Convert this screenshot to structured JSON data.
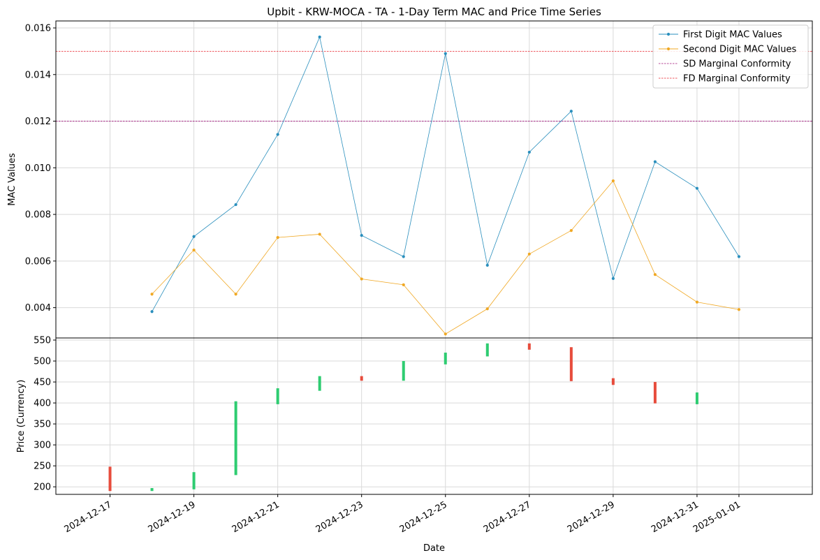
{
  "chart_data": {
    "title": "Upbit - KRW-MOCA - TA - 1-Day Term MAC and Price Time Series",
    "xlabel": "Date",
    "x_ticks": [
      "2024-12-17",
      "2024-12-19",
      "2024-12-21",
      "2024-12-23",
      "2024-12-25",
      "2024-12-27",
      "2024-12-29",
      "2024-12-31",
      "2025-01-01"
    ],
    "grid": true,
    "legend_position": "top-right",
    "panels": [
      {
        "type": "line",
        "ylabel": "MAC Values",
        "ylim": [
          0.0027,
          0.0163
        ],
        "y_ticks": [
          "0.004",
          "0.006",
          "0.008",
          "0.010",
          "0.012",
          "0.014",
          "0.016"
        ],
        "dates": [
          "2024-12-18",
          "2024-12-19",
          "2024-12-20",
          "2024-12-21",
          "2024-12-22",
          "2024-12-23",
          "2024-12-24",
          "2024-12-25",
          "2024-12-26",
          "2024-12-27",
          "2024-12-28",
          "2024-12-29",
          "2024-12-30",
          "2024-12-31",
          "2025-01-01"
        ],
        "series": [
          {
            "name": "First Digit MAC Values",
            "color": "#2a8fbd",
            "values": [
              0.00383,
              0.00705,
              0.00842,
              0.01143,
              0.01561,
              0.0071,
              0.00619,
              0.0149,
              0.00582,
              0.01067,
              0.01243,
              0.00525,
              0.01026,
              0.00912,
              0.00619
            ]
          },
          {
            "name": "Second Digit MAC Values",
            "color": "#f0a824",
            "values": [
              0.00458,
              0.00647,
              0.00458,
              0.00701,
              0.00715,
              0.00523,
              0.00498,
              0.00287,
              0.00395,
              0.0063,
              0.00731,
              0.00944,
              0.00542,
              0.00424,
              0.00392
            ]
          }
        ],
        "reference_lines": [
          {
            "name": "SD Marginal Conformity",
            "value": 0.012,
            "color": "#a0147a",
            "style": "dashed"
          },
          {
            "name": "FD Marginal Conformity",
            "value": 0.015,
            "color": "#e8202a",
            "style": "dashed"
          }
        ]
      },
      {
        "type": "candlestick",
        "ylabel": "Price (Currency)",
        "ylim": [
          182,
          555
        ],
        "y_ticks": [
          "200",
          "250",
          "300",
          "350",
          "400",
          "450",
          "500",
          "550"
        ],
        "up_color": "#2ecc71",
        "down_color": "#e74c3c",
        "candles": [
          {
            "date": "2024-12-17",
            "open": 248,
            "close": 190
          },
          {
            "date": "2024-12-18",
            "open": 190,
            "close": 197
          },
          {
            "date": "2024-12-19",
            "open": 194,
            "close": 235
          },
          {
            "date": "2024-12-20",
            "open": 228,
            "close": 404
          },
          {
            "date": "2024-12-21",
            "open": 397,
            "close": 435
          },
          {
            "date": "2024-12-22",
            "open": 429,
            "close": 464
          },
          {
            "date": "2024-12-23",
            "open": 464,
            "close": 453
          },
          {
            "date": "2024-12-24",
            "open": 453,
            "close": 500
          },
          {
            "date": "2024-12-25",
            "open": 492,
            "close": 520
          },
          {
            "date": "2024-12-26",
            "open": 511,
            "close": 542
          },
          {
            "date": "2024-12-27",
            "open": 542,
            "close": 527
          },
          {
            "date": "2024-12-28",
            "open": 533,
            "close": 452
          },
          {
            "date": "2024-12-29",
            "open": 459,
            "close": 443
          },
          {
            "date": "2024-12-30",
            "open": 450,
            "close": 399
          },
          {
            "date": "2024-12-31",
            "open": 397,
            "close": 425
          }
        ]
      }
    ]
  }
}
